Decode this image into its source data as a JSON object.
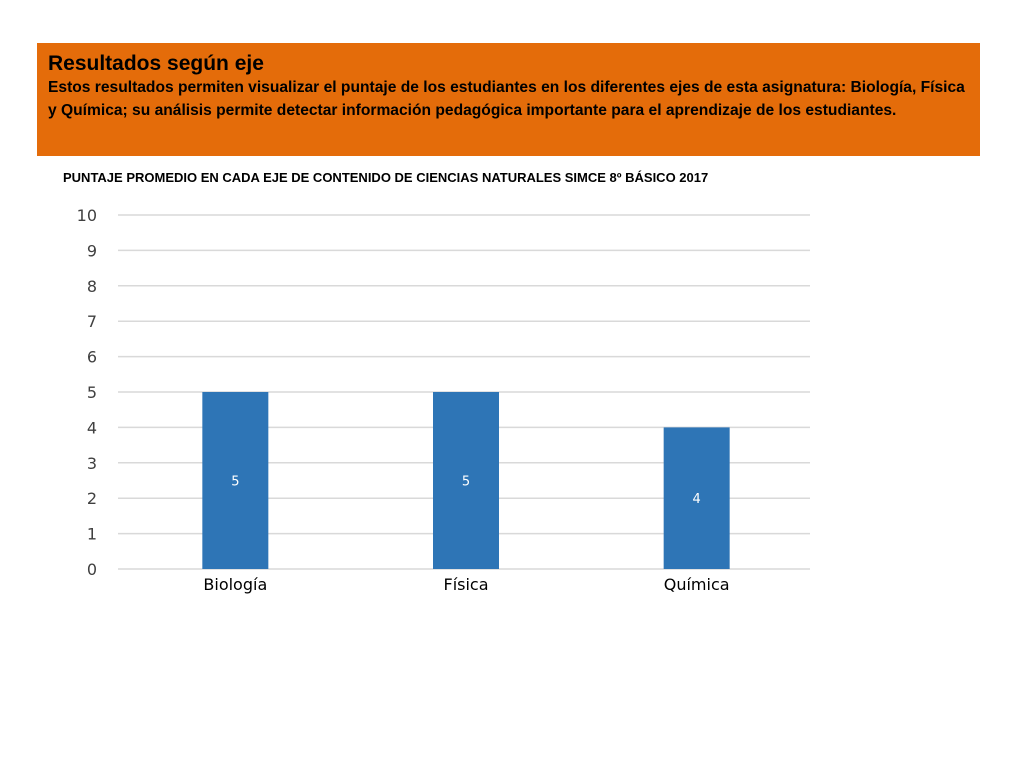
{
  "header": {
    "title": "Resultados según eje",
    "description": "Estos resultados permiten visualizar el puntaje de los estudiantes en los diferentes ejes de esta asignatura: Biología, Física y Química; su análisis permite detectar información pedagógica importante para el aprendizaje de los estudiantes.",
    "background_color": "#e46c0a"
  },
  "chart_data": {
    "type": "bar",
    "title": "PUNTAJE PROMEDIO EN CADA EJE DE CONTENIDO DE CIENCIAS NATURALES SIMCE 8º BÁSICO 2017",
    "categories": [
      "Biología",
      "Física",
      "Química"
    ],
    "values": [
      5,
      5,
      4
    ],
    "data_labels": [
      "5",
      "5",
      "4"
    ],
    "ylim": [
      0,
      10
    ],
    "yticks": [
      0,
      1,
      2,
      3,
      4,
      5,
      6,
      7,
      8,
      9,
      10
    ],
    "xlabel": "",
    "ylabel": "",
    "grid": true,
    "legend": false,
    "bar_color": "#2e75b6",
    "grid_color": "#d9d9d9"
  }
}
